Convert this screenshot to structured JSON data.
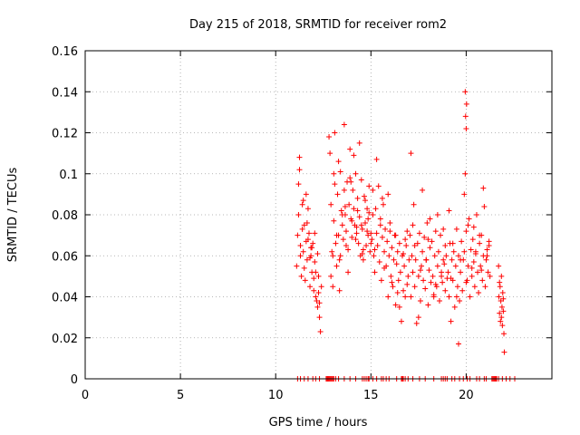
{
  "chart_data": {
    "type": "scatter",
    "title": "Day 215 of 2018, SRMTID for receiver rom2",
    "xlabel": "GPS time / hours",
    "ylabel": "SRMTID / TECUs",
    "xlim": [
      0,
      24.5
    ],
    "ylim": [
      0,
      0.16
    ],
    "x_ticks": [
      0,
      5,
      10,
      15,
      20
    ],
    "x_tick_labels": [
      "0",
      "5",
      "10",
      "15",
      "20"
    ],
    "y_ticks": [
      0,
      0.02,
      0.04,
      0.06,
      0.08,
      0.1,
      0.12,
      0.14,
      0.16
    ],
    "y_tick_labels": [
      "0",
      "0.02",
      "0.04",
      "0.06",
      "0.08",
      "0.1",
      "0.12",
      "0.14",
      "0.16"
    ],
    "grid": true,
    "marker": "plus",
    "series_color": "#ff0000",
    "series": [
      {
        "name": "SRMTID",
        "x": [
          11.1,
          11.15,
          11.2,
          11.25,
          11.3,
          11.35,
          11.4,
          11.45,
          11.5,
          11.55,
          11.6,
          11.65,
          11.7,
          11.75,
          11.8,
          11.85,
          11.9,
          11.95,
          12.0,
          12.05,
          12.1,
          12.15,
          12.2,
          12.25,
          12.3,
          12.35,
          12.4,
          11.2,
          11.3,
          11.4,
          11.5,
          11.6,
          11.7,
          11.8,
          11.9,
          12.0,
          12.1,
          12.2,
          12.3,
          11.25,
          11.45,
          11.65,
          11.85,
          12.05,
          12.25,
          12.8,
          12.85,
          12.9,
          12.95,
          13.0,
          13.05,
          13.1,
          13.15,
          13.2,
          13.25,
          13.3,
          13.35,
          13.4,
          13.45,
          13.5,
          13.55,
          13.6,
          13.65,
          13.7,
          13.75,
          13.8,
          13.85,
          13.9,
          13.95,
          14.0,
          14.05,
          14.1,
          14.15,
          14.2,
          14.25,
          14.3,
          14.35,
          14.4,
          14.45,
          14.5,
          14.55,
          14.6,
          14.65,
          14.7,
          14.75,
          14.8,
          14.85,
          14.9,
          14.95,
          15.0,
          12.9,
          13.0,
          13.1,
          13.2,
          13.3,
          13.4,
          13.5,
          13.6,
          13.7,
          13.8,
          13.9,
          14.0,
          14.1,
          14.2,
          14.3,
          14.4,
          14.5,
          14.6,
          14.7,
          14.8,
          14.9,
          15.0,
          13.05,
          13.35,
          13.65,
          13.95,
          14.25,
          14.55,
          14.85,
          15.05,
          15.1,
          15.15,
          15.2,
          15.25,
          15.3,
          15.35,
          15.4,
          15.45,
          15.5,
          15.55,
          15.6,
          15.65,
          15.7,
          15.75,
          15.8,
          15.85,
          15.9,
          15.95,
          16.0,
          16.05,
          16.1,
          16.15,
          16.2,
          16.25,
          16.3,
          16.35,
          16.4,
          16.45,
          16.5,
          16.55,
          16.6,
          16.65,
          16.7,
          16.75,
          16.8,
          16.85,
          16.9,
          16.95,
          17.0,
          15.1,
          15.3,
          15.5,
          15.7,
          15.9,
          16.1,
          16.3,
          16.5,
          16.7,
          16.9,
          15.2,
          15.6,
          16.0,
          16.4,
          16.8,
          17.05,
          17.1,
          17.15,
          17.2,
          17.25,
          17.3,
          17.35,
          17.4,
          17.45,
          17.5,
          17.55,
          17.6,
          17.65,
          17.7,
          17.75,
          17.8,
          17.85,
          17.9,
          17.95,
          18.0,
          18.05,
          18.1,
          18.15,
          18.2,
          18.25,
          18.3,
          18.35,
          18.4,
          18.45,
          18.5,
          18.55,
          18.6,
          18.65,
          18.7,
          18.75,
          18.8,
          18.85,
          18.9,
          18.95,
          19.0,
          17.1,
          17.3,
          17.5,
          17.7,
          17.9,
          18.1,
          18.3,
          18.5,
          18.7,
          18.9,
          17.2,
          17.6,
          18.0,
          18.4,
          18.8,
          19.05,
          19.1,
          19.15,
          19.2,
          19.25,
          19.3,
          19.35,
          19.4,
          19.45,
          19.5,
          19.55,
          19.6,
          19.65,
          19.7,
          19.75,
          19.8,
          19.85,
          19.9,
          19.95,
          20.0,
          20.05,
          20.1,
          20.15,
          20.2,
          20.25,
          20.3,
          20.35,
          20.4,
          20.45,
          20.5,
          20.55,
          20.6,
          20.65,
          20.7,
          20.75,
          20.8,
          20.85,
          20.9,
          20.95,
          21.0,
          21.05,
          21.1,
          21.15,
          21.2,
          21.25,
          19.1,
          19.3,
          19.5,
          19.7,
          19.9,
          20.1,
          20.3,
          20.5,
          20.7,
          20.9,
          21.1,
          19.2,
          19.6,
          20.0,
          20.4,
          20.8,
          21.2,
          19.95,
          19.97,
          20.0,
          20.02,
          21.7,
          21.72,
          21.75,
          21.78,
          21.8,
          21.82,
          21.85,
          21.88,
          21.9,
          21.92,
          21.95,
          21.98,
          22.0,
          21.75,
          21.85,
          21.95
        ],
        "y": [
          0.055,
          0.07,
          0.095,
          0.102,
          0.065,
          0.05,
          0.085,
          0.062,
          0.075,
          0.048,
          0.09,
          0.058,
          0.068,
          0.071,
          0.045,
          0.06,
          0.052,
          0.066,
          0.049,
          0.057,
          0.04,
          0.038,
          0.035,
          0.042,
          0.03,
          0.023,
          0.045,
          0.08,
          0.06,
          0.073,
          0.054,
          0.067,
          0.083,
          0.059,
          0.064,
          0.043,
          0.052,
          0.061,
          0.037,
          0.108,
          0.087,
          0.076,
          0.064,
          0.071,
          0.05,
          0.118,
          0.11,
          0.085,
          0.062,
          0.06,
          0.077,
          0.12,
          0.066,
          0.055,
          0.09,
          0.07,
          0.058,
          0.101,
          0.082,
          0.075,
          0.068,
          0.124,
          0.08,
          0.072,
          0.096,
          0.063,
          0.085,
          0.112,
          0.078,
          0.069,
          0.092,
          0.083,
          0.075,
          0.1,
          0.071,
          0.088,
          0.066,
          0.079,
          0.06,
          0.097,
          0.073,
          0.058,
          0.089,
          0.076,
          0.065,
          0.083,
          0.07,
          0.094,
          0.062,
          0.071,
          0.05,
          0.045,
          0.095,
          0.07,
          0.106,
          0.06,
          0.08,
          0.092,
          0.065,
          0.052,
          0.098,
          0.077,
          0.109,
          0.068,
          0.082,
          0.115,
          0.075,
          0.063,
          0.087,
          0.072,
          0.081,
          0.066,
          0.1,
          0.043,
          0.084,
          0.096,
          0.074,
          0.061,
          0.078,
          0.068,
          0.092,
          0.06,
          0.052,
          0.083,
          0.071,
          0.065,
          0.094,
          0.057,
          0.078,
          0.048,
          0.069,
          0.085,
          0.062,
          0.073,
          0.055,
          0.067,
          0.04,
          0.06,
          0.076,
          0.05,
          0.064,
          0.045,
          0.058,
          0.07,
          0.036,
          0.056,
          0.062,
          0.048,
          0.066,
          0.052,
          0.028,
          0.06,
          0.043,
          0.055,
          0.04,
          0.065,
          0.072,
          0.05,
          0.058,
          0.08,
          0.107,
          0.075,
          0.054,
          0.09,
          0.047,
          0.07,
          0.035,
          0.061,
          0.046,
          0.063,
          0.088,
          0.072,
          0.042,
          0.068,
          0.07,
          0.04,
          0.06,
          0.052,
          0.085,
          0.045,
          0.058,
          0.027,
          0.066,
          0.05,
          0.071,
          0.038,
          0.055,
          0.062,
          0.048,
          0.069,
          0.044,
          0.058,
          0.076,
          0.036,
          0.053,
          0.064,
          0.047,
          0.067,
          0.05,
          0.041,
          0.06,
          0.072,
          0.045,
          0.055,
          0.062,
          0.038,
          0.07,
          0.052,
          0.047,
          0.073,
          0.056,
          0.043,
          0.06,
          0.049,
          0.11,
          0.065,
          0.03,
          0.092,
          0.058,
          0.078,
          0.04,
          0.08,
          0.05,
          0.065,
          0.075,
          0.053,
          0.068,
          0.046,
          0.058,
          0.052,
          0.04,
          0.066,
          0.028,
          0.058,
          0.048,
          0.062,
          0.035,
          0.055,
          0.073,
          0.045,
          0.06,
          0.038,
          0.052,
          0.067,
          0.043,
          0.058,
          0.062,
          0.1,
          0.072,
          0.048,
          0.055,
          0.078,
          0.04,
          0.063,
          0.05,
          0.068,
          0.057,
          0.045,
          0.061,
          0.08,
          0.052,
          0.042,
          0.066,
          0.055,
          0.07,
          0.048,
          0.06,
          0.084,
          0.045,
          0.058,
          0.063,
          0.052,
          0.067,
          0.05,
          0.082,
          0.066,
          0.04,
          0.058,
          0.09,
          0.075,
          0.054,
          0.062,
          0.07,
          0.093,
          0.06,
          0.049,
          0.017,
          0.047,
          0.074,
          0.053,
          0.065,
          0.14,
          0.128,
          0.122,
          0.134,
          0.055,
          0.04,
          0.032,
          0.045,
          0.028,
          0.038,
          0.05,
          0.035,
          0.026,
          0.042,
          0.033,
          0.022,
          0.013,
          0.047,
          0.03,
          0.039
        ]
      }
    ],
    "zero_marks_x": [
      11.15,
      11.3,
      11.5,
      11.7,
      11.95,
      12.1,
      12.3,
      12.65,
      12.7,
      12.75,
      12.8,
      12.85,
      12.9,
      12.95,
      13.0,
      13.05,
      13.15,
      13.3,
      13.6,
      13.9,
      14.2,
      14.55,
      14.65,
      14.75,
      14.85,
      14.9,
      15.1,
      15.3,
      15.55,
      15.65,
      15.8,
      15.95,
      16.35,
      16.6,
      16.65,
      16.7,
      16.8,
      16.95,
      17.2,
      17.55,
      17.85,
      18.3,
      18.7,
      18.8,
      18.9,
      19.0,
      19.25,
      19.4,
      19.65,
      19.85,
      20.05,
      20.2,
      20.55,
      20.7,
      20.95,
      21.05,
      21.35,
      21.4,
      21.45,
      21.5,
      21.55,
      21.6,
      21.7,
      21.9,
      22.1,
      22.3,
      22.55
    ]
  }
}
